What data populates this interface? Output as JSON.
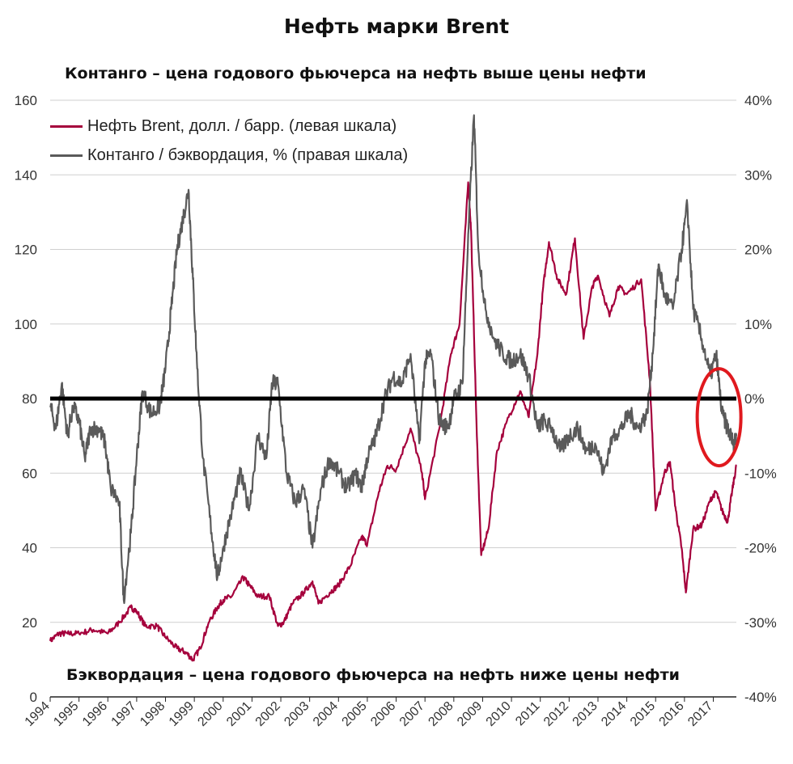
{
  "chart_data": {
    "type": "line",
    "title": "Нефть марки Brent",
    "annotations": {
      "top": "Контанго – цена годового фьючерса на нефть выше цены нефти",
      "bottom": "Бэквордация – цена годового фьючерса на нефть ниже цены нефти"
    },
    "x_ticks": [
      "1994",
      "1995",
      "1996",
      "1997",
      "1998",
      "1999",
      "2000",
      "2001",
      "2002",
      "2003",
      "2004",
      "2005",
      "2006",
      "2007",
      "2008",
      "2009",
      "2010",
      "2011",
      "2012",
      "2013",
      "2014",
      "2015",
      "2016",
      "2017"
    ],
    "xlim": [
      1994.0,
      2017.8
    ],
    "y_left": {
      "ticks": [
        "0",
        "20",
        "40",
        "60",
        "80",
        "100",
        "120",
        "140",
        "160"
      ],
      "lim": [
        0,
        160
      ]
    },
    "y_right": {
      "ticks": [
        "-40%",
        "-30%",
        "-20%",
        "-10%",
        "0%",
        "10%",
        "20%",
        "30%",
        "40%"
      ],
      "lim": [
        -40,
        40
      ]
    },
    "grid": true,
    "legend_position": "top-left",
    "reference_line": {
      "axis": "right",
      "value": 0,
      "color": "#000000"
    },
    "highlight": {
      "shape": "ellipse",
      "color": "#e0191e",
      "x_center": 2017.2,
      "y_right_center": -2.5
    },
    "series": [
      {
        "name": "Нефть Brent, долл. / барр. (левая шкала)",
        "axis": "left",
        "color": "#a5003c",
        "points": [
          [
            1994.0,
            15
          ],
          [
            1994.3,
            17
          ],
          [
            1994.6,
            17
          ],
          [
            1995.0,
            17
          ],
          [
            1995.5,
            18
          ],
          [
            1996.0,
            17
          ],
          [
            1996.4,
            20
          ],
          [
            1996.8,
            24
          ],
          [
            1997.0,
            23
          ],
          [
            1997.3,
            19
          ],
          [
            1997.7,
            19
          ],
          [
            1998.0,
            16
          ],
          [
            1998.4,
            13
          ],
          [
            1998.7,
            12
          ],
          [
            1998.95,
            10
          ],
          [
            1999.2,
            13
          ],
          [
            1999.5,
            20
          ],
          [
            1999.8,
            24
          ],
          [
            2000.0,
            26
          ],
          [
            2000.3,
            27
          ],
          [
            2000.7,
            32
          ],
          [
            2000.9,
            30
          ],
          [
            2001.2,
            27
          ],
          [
            2001.6,
            27
          ],
          [
            2001.9,
            19
          ],
          [
            2002.1,
            20
          ],
          [
            2002.4,
            25
          ],
          [
            2002.8,
            28
          ],
          [
            2003.1,
            31
          ],
          [
            2003.3,
            25
          ],
          [
            2003.7,
            28
          ],
          [
            2004.0,
            30
          ],
          [
            2004.4,
            35
          ],
          [
            2004.8,
            43
          ],
          [
            2005.0,
            41
          ],
          [
            2005.4,
            55
          ],
          [
            2005.7,
            62
          ],
          [
            2006.0,
            61
          ],
          [
            2006.5,
            72
          ],
          [
            2006.9,
            60
          ],
          [
            2007.0,
            53
          ],
          [
            2007.5,
            72
          ],
          [
            2007.9,
            92
          ],
          [
            2008.2,
            100
          ],
          [
            2008.5,
            138
          ],
          [
            2008.6,
            125
          ],
          [
            2008.8,
            70
          ],
          [
            2008.95,
            38
          ],
          [
            2009.2,
            45
          ],
          [
            2009.5,
            66
          ],
          [
            2009.9,
            75
          ],
          [
            2010.3,
            82
          ],
          [
            2010.6,
            75
          ],
          [
            2010.9,
            92
          ],
          [
            2011.1,
            110
          ],
          [
            2011.3,
            122
          ],
          [
            2011.6,
            112
          ],
          [
            2011.9,
            108
          ],
          [
            2012.2,
            123
          ],
          [
            2012.5,
            96
          ],
          [
            2012.8,
            110
          ],
          [
            2013.0,
            113
          ],
          [
            2013.4,
            102
          ],
          [
            2013.7,
            110
          ],
          [
            2014.0,
            108
          ],
          [
            2014.5,
            112
          ],
          [
            2014.8,
            85
          ],
          [
            2015.0,
            50
          ],
          [
            2015.3,
            60
          ],
          [
            2015.5,
            63
          ],
          [
            2015.7,
            50
          ],
          [
            2015.9,
            40
          ],
          [
            2016.05,
            28
          ],
          [
            2016.3,
            45
          ],
          [
            2016.6,
            46
          ],
          [
            2016.9,
            53
          ],
          [
            2017.1,
            55
          ],
          [
            2017.3,
            50
          ],
          [
            2017.5,
            47
          ],
          [
            2017.65,
            55
          ],
          [
            2017.8,
            62
          ]
        ]
      },
      {
        "name": "Контанго / бэквордация, % (правая шкала)",
        "axis": "right",
        "color": "#5a5a5a",
        "points": [
          [
            1994.0,
            -1
          ],
          [
            1994.2,
            -4
          ],
          [
            1994.4,
            2
          ],
          [
            1994.6,
            -5
          ],
          [
            1994.8,
            -1
          ],
          [
            1995.0,
            -3
          ],
          [
            1995.2,
            -8
          ],
          [
            1995.4,
            -4
          ],
          [
            1995.7,
            -4
          ],
          [
            1995.9,
            -6
          ],
          [
            1996.1,
            -12
          ],
          [
            1996.4,
            -14
          ],
          [
            1996.55,
            -27
          ],
          [
            1996.8,
            -18
          ],
          [
            1997.0,
            -8
          ],
          [
            1997.2,
            1
          ],
          [
            1997.5,
            -2
          ],
          [
            1997.8,
            -1
          ],
          [
            1998.0,
            4
          ],
          [
            1998.2,
            12
          ],
          [
            1998.4,
            20
          ],
          [
            1998.6,
            24
          ],
          [
            1998.8,
            28
          ],
          [
            1998.95,
            16
          ],
          [
            1999.1,
            4
          ],
          [
            1999.3,
            -8
          ],
          [
            1999.6,
            -18
          ],
          [
            1999.8,
            -24
          ],
          [
            2000.0,
            -20
          ],
          [
            2000.3,
            -15
          ],
          [
            2000.6,
            -10
          ],
          [
            2000.9,
            -15
          ],
          [
            2001.2,
            -5
          ],
          [
            2001.5,
            -8
          ],
          [
            2001.7,
            2
          ],
          [
            2001.9,
            2
          ],
          [
            2002.2,
            -10
          ],
          [
            2002.5,
            -14
          ],
          [
            2002.8,
            -12
          ],
          [
            2003.1,
            -20
          ],
          [
            2003.4,
            -12
          ],
          [
            2003.7,
            -8
          ],
          [
            2004.0,
            -10
          ],
          [
            2004.3,
            -12
          ],
          [
            2004.6,
            -10
          ],
          [
            2004.8,
            -12
          ],
          [
            2005.0,
            -8
          ],
          [
            2005.3,
            -5
          ],
          [
            2005.6,
            0
          ],
          [
            2005.9,
            3
          ],
          [
            2006.2,
            2
          ],
          [
            2006.5,
            6
          ],
          [
            2006.8,
            -6
          ],
          [
            2007.0,
            5
          ],
          [
            2007.2,
            6
          ],
          [
            2007.5,
            -3
          ],
          [
            2007.8,
            -4
          ],
          [
            2008.0,
            0
          ],
          [
            2008.3,
            2
          ],
          [
            2008.5,
            22
          ],
          [
            2008.7,
            38
          ],
          [
            2008.85,
            20
          ],
          [
            2009.1,
            12
          ],
          [
            2009.4,
            8
          ],
          [
            2009.7,
            6
          ],
          [
            2010.0,
            5
          ],
          [
            2010.3,
            6
          ],
          [
            2010.6,
            3
          ],
          [
            2010.9,
            -4
          ],
          [
            2011.1,
            -3
          ],
          [
            2011.4,
            -4
          ],
          [
            2011.7,
            -7
          ],
          [
            2012.0,
            -5
          ],
          [
            2012.3,
            -4
          ],
          [
            2012.6,
            -7
          ],
          [
            2012.9,
            -6
          ],
          [
            2013.2,
            -10
          ],
          [
            2013.5,
            -5
          ],
          [
            2013.8,
            -4
          ],
          [
            2014.1,
            -2
          ],
          [
            2014.4,
            -4
          ],
          [
            2014.7,
            -2
          ],
          [
            2014.9,
            6
          ],
          [
            2015.1,
            18
          ],
          [
            2015.3,
            14
          ],
          [
            2015.6,
            12
          ],
          [
            2015.9,
            20
          ],
          [
            2016.1,
            26
          ],
          [
            2016.3,
            12
          ],
          [
            2016.6,
            8
          ],
          [
            2016.9,
            3
          ],
          [
            2017.1,
            6
          ],
          [
            2017.3,
            -2
          ],
          [
            2017.5,
            -4
          ],
          [
            2017.7,
            -6
          ],
          [
            2017.8,
            -5
          ]
        ]
      }
    ]
  }
}
